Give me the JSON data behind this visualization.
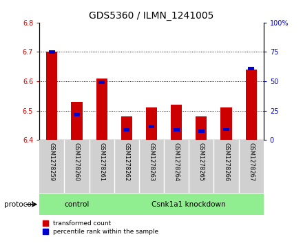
{
  "title": "GDS5360 / ILMN_1241005",
  "samples": [
    "GSM1278259",
    "GSM1278260",
    "GSM1278261",
    "GSM1278262",
    "GSM1278263",
    "GSM1278264",
    "GSM1278265",
    "GSM1278266",
    "GSM1278267"
  ],
  "red_values": [
    6.7,
    6.53,
    6.61,
    6.48,
    6.51,
    6.52,
    6.48,
    6.51,
    6.64
  ],
  "blue_values": [
    6.7,
    6.486,
    6.596,
    6.435,
    6.445,
    6.435,
    6.43,
    6.436,
    6.643
  ],
  "ylim_left": [
    6.4,
    6.8
  ],
  "ylim_right": [
    0,
    100
  ],
  "yticks_left": [
    6.4,
    6.5,
    6.6,
    6.7,
    6.8
  ],
  "yticks_right": [
    0,
    25,
    50,
    75,
    100
  ],
  "bar_bottom": 6.4,
  "bar_width": 0.45,
  "red_color": "#cc0000",
  "blue_color": "#0000cc",
  "ctrl_n": 3,
  "control_label": "control",
  "knockdown_label": "Csnk1a1 knockdown",
  "protocol_label": "protocol",
  "group_color": "#90EE90",
  "bg_color": "#d0d0d0",
  "legend1": "transformed count",
  "legend2": "percentile rank within the sample",
  "title_fontsize": 10,
  "tick_fontsize": 7,
  "sample_fontsize": 6
}
